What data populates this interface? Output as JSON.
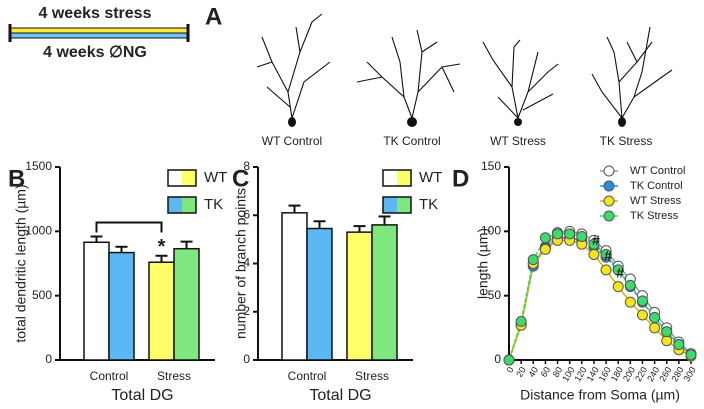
{
  "timeline": {
    "top_label": "4 weeks stress",
    "bottom_label": "4 weeks ∅NG"
  },
  "panel_a": {
    "label": "A",
    "neurons": [
      "WT Control",
      "TK Control",
      "WT Stress",
      "TK Stress"
    ]
  },
  "chart_data": [
    {
      "type": "bar",
      "panel_label": "B",
      "ylabel": "total dendritic length (µm)",
      "xlabel": "Total DG",
      "categories": [
        "Control",
        "Stress"
      ],
      "series": [
        {
          "name": "WT",
          "colors": [
            "#ffffff",
            "#ffff66"
          ],
          "values": [
            915,
            760
          ],
          "errors": [
            45,
            50
          ]
        },
        {
          "name": "TK",
          "colors": [
            "#5bb8f5",
            "#7ee87e"
          ],
          "values": [
            835,
            865
          ],
          "errors": [
            45,
            55
          ]
        }
      ],
      "ylim": [
        0,
        1500
      ],
      "yticks": [
        0,
        500,
        1000,
        1500
      ],
      "annotation": "*"
    },
    {
      "type": "bar",
      "panel_label": "C",
      "ylabel": "number of branch points",
      "xlabel": "Total DG",
      "categories": [
        "Control",
        "Stress"
      ],
      "series": [
        {
          "name": "WT",
          "colors": [
            "#ffffff",
            "#ffff66"
          ],
          "values": [
            6.1,
            5.3
          ],
          "errors": [
            0.3,
            0.25
          ]
        },
        {
          "name": "TK",
          "colors": [
            "#5bb8f5",
            "#7ee87e"
          ],
          "values": [
            5.45,
            5.6
          ],
          "errors": [
            0.3,
            0.35
          ]
        }
      ],
      "ylim": [
        0,
        8
      ],
      "yticks": [
        0,
        2,
        4,
        6,
        8
      ]
    },
    {
      "type": "line",
      "panel_label": "D",
      "ylabel": "length (µm)",
      "xlabel": "Distance from Soma (µm)",
      "x": [
        0,
        20,
        40,
        60,
        80,
        100,
        120,
        140,
        160,
        180,
        200,
        220,
        240,
        260,
        280,
        300
      ],
      "series": [
        {
          "name": "WT Control",
          "color": "#ffffff",
          "line_color": "#999999",
          "values": [
            0,
            27,
            75,
            88,
            99,
            100,
            98,
            93,
            85,
            73,
            63,
            50,
            37,
            25,
            14,
            5
          ]
        },
        {
          "name": "TK Control",
          "color": "#2a8ee0",
          "line_color": "#2a8ee0",
          "values": [
            0,
            28,
            73,
            87,
            95,
            95,
            93,
            88,
            80,
            70,
            57,
            45,
            33,
            22,
            12,
            4
          ]
        },
        {
          "name": "WT Stress",
          "color": "#f5e51c",
          "line_color": "#c8b800",
          "values": [
            0,
            27,
            75,
            86,
            93,
            93,
            90,
            82,
            70,
            57,
            45,
            35,
            25,
            15,
            8,
            3
          ]
        },
        {
          "name": "TK Stress",
          "color": "#3ddc6a",
          "line_color": "#3ddc6a",
          "values": [
            0,
            30,
            78,
            95,
            98,
            98,
            96,
            90,
            82,
            70,
            58,
            46,
            33,
            22,
            12,
            4
          ]
        }
      ],
      "xlim": [
        0,
        300
      ],
      "ylim": [
        0,
        150
      ],
      "xticks": [
        0,
        20,
        40,
        60,
        80,
        100,
        120,
        140,
        160,
        180,
        200,
        220,
        240,
        260,
        280,
        300
      ],
      "yticks": [
        0,
        50,
        100,
        150
      ],
      "annotations": [
        "#",
        "#",
        "#"
      ]
    }
  ]
}
